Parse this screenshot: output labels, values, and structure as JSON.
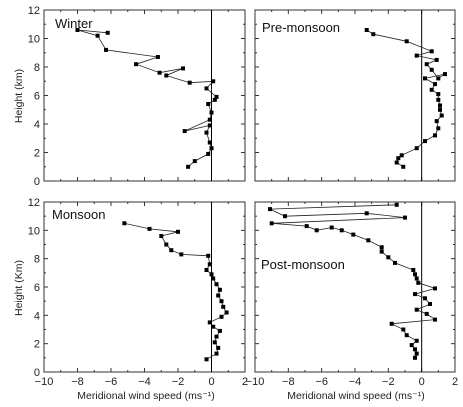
{
  "chart_data": [
    {
      "type": "line",
      "title": "Winter",
      "xlabel": "",
      "ylabel": "Height (km)",
      "xlim": [
        -10,
        2
      ],
      "ylim": [
        0,
        12
      ],
      "xticks": [],
      "yticks": [
        "0",
        "2",
        "4",
        "6",
        "8",
        "10",
        "12"
      ],
      "series": [
        {
          "x": [
            -1.4,
            -1.0,
            -0.2,
            0.0,
            -0.1,
            -0.3,
            -0.1,
            -1.6,
            -0.1,
            0.0,
            -0.2,
            0.2,
            0.3,
            -0.3,
            0.1,
            -1.3,
            -2.7,
            -1.7,
            -3.1,
            -4.5,
            -3.2,
            -6.3,
            -6.8,
            -8.0,
            -6.2
          ],
          "y": [
            1.0,
            1.4,
            1.9,
            2.3,
            2.7,
            3.4,
            3.9,
            3.5,
            4.3,
            4.8,
            5.4,
            5.7,
            5.9,
            6.5,
            7.0,
            6.9,
            7.4,
            7.9,
            7.6,
            8.2,
            8.7,
            9.2,
            10.2,
            10.6,
            10.4
          ]
        }
      ]
    },
    {
      "type": "line",
      "title": "Pre-monsoon",
      "xlabel": "",
      "ylabel": "",
      "xlim": [
        -10,
        2
      ],
      "ylim": [
        0,
        12
      ],
      "xticks": [],
      "yticks": [],
      "series": [
        {
          "x": [
            -1.1,
            -1.5,
            -1.4,
            -1.2,
            -0.3,
            0.2,
            0.8,
            1.0,
            0.9,
            1.2,
            1.1,
            1.1,
            1.0,
            1.0,
            0.6,
            0.8,
            0.2,
            1.4,
            1.0,
            0.6,
            0.3,
            0.9,
            -0.3,
            0.6,
            -0.9,
            -2.9,
            -3.3
          ],
          "y": [
            1.0,
            1.3,
            1.6,
            1.8,
            2.3,
            2.8,
            3.2,
            3.7,
            4.2,
            4.6,
            5.0,
            5.3,
            5.7,
            6.1,
            6.4,
            6.8,
            7.2,
            7.5,
            7.2,
            7.8,
            8.2,
            8.5,
            8.8,
            9.1,
            9.8,
            10.3,
            10.6
          ]
        }
      ]
    },
    {
      "type": "line",
      "title": "Monsoon",
      "xlabel": "Meridional wind speed (ms⁻¹)",
      "ylabel": "Height (Km)",
      "xlim": [
        -10,
        2
      ],
      "ylim": [
        0,
        12
      ],
      "xticks": [
        "−10",
        "−8",
        "−6",
        "−4",
        "−2",
        "0",
        "2"
      ],
      "yticks": [
        "0",
        "2",
        "4",
        "6",
        "8",
        "10",
        "12"
      ],
      "series": [
        {
          "x": [
            -0.3,
            0.3,
            0.4,
            0.2,
            0.3,
            0.5,
            0.1,
            -0.1,
            0.6,
            0.9,
            0.7,
            0.6,
            0.4,
            0.5,
            0.3,
            0.1,
            0.0,
            -0.3,
            -0.1,
            -0.2,
            -1.8,
            -2.4,
            -2.7,
            -3.0,
            -2.0,
            -3.7,
            -5.2
          ],
          "y": [
            0.9,
            1.3,
            1.7,
            2.1,
            2.5,
            2.9,
            3.2,
            3.5,
            3.9,
            4.2,
            4.6,
            5.0,
            5.4,
            5.8,
            6.2,
            6.6,
            6.9,
            7.2,
            7.6,
            8.2,
            8.3,
            8.6,
            9.0,
            9.6,
            9.9,
            10.1,
            10.5
          ]
        }
      ]
    },
    {
      "type": "line",
      "title": "Post-monsoon",
      "xlabel": "Meridional wind speed (ms⁻¹)",
      "ylabel": "",
      "xlim": [
        -10,
        2
      ],
      "ylim": [
        0,
        12
      ],
      "xticks": [
        "−10",
        "−8",
        "−6",
        "−4",
        "−2",
        "0",
        "2"
      ],
      "yticks": [],
      "series": [
        {
          "x": [
            -0.4,
            -0.3,
            -0.4,
            -0.6,
            -0.3,
            -0.9,
            -1.1,
            -1.8,
            0.8,
            0.3,
            -0.3,
            0.5,
            0.2,
            -0.4,
            0.8,
            -0.2,
            -0.3,
            -0.4,
            -0.5,
            -1.6,
            -2.0,
            -2.4,
            -2.4,
            -3.2,
            -4.1,
            -4.8,
            -5.4,
            -6.3,
            -6.9,
            -9.0,
            -1.0,
            -3.3,
            -8.2,
            -9.1,
            -1.5
          ],
          "y": [
            1.0,
            1.3,
            1.6,
            1.9,
            2.2,
            2.6,
            3.0,
            3.4,
            3.7,
            4.1,
            4.4,
            4.8,
            5.2,
            5.5,
            5.9,
            6.3,
            6.6,
            6.9,
            7.2,
            7.7,
            8.1,
            8.5,
            8.8,
            9.3,
            9.7,
            10.0,
            10.2,
            10.0,
            10.3,
            10.5,
            10.9,
            11.2,
            11.0,
            11.5,
            11.8
          ]
        }
      ]
    }
  ]
}
